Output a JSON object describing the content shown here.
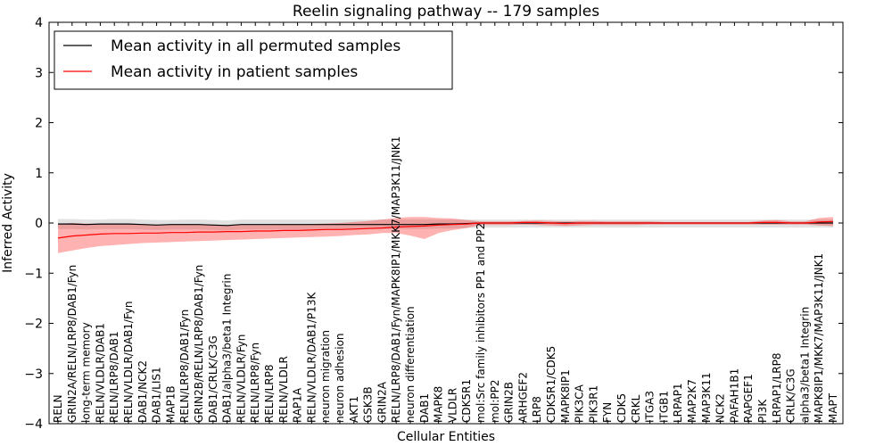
{
  "chart_data": {
    "type": "line",
    "title": "Reelin signaling pathway -- 179 samples",
    "xlabel": "Cellular Entities",
    "ylabel": "Inferred Activity",
    "ylim": [
      -4,
      4
    ],
    "yticks": [
      4,
      3,
      2,
      1,
      0,
      -1,
      -2,
      -3,
      -4
    ],
    "ytick_labels": [
      "4",
      "3",
      "2",
      "1",
      "0",
      "−1",
      "−2",
      "−3",
      "−4"
    ],
    "grid": false,
    "legend_position": "top-left",
    "categories": [
      "RELN",
      "GRIN2A/RELN/LRP8/DAB1/Fyn",
      "long-term memory",
      "RELN/VLDLR/DAB1",
      "RELN/LRP8/DAB1",
      "RELN/VLDLR/DAB1/Fyn",
      "DAB1/NCK2",
      "DAB1/LIS1",
      "MAP1B",
      "RELN/LRP8/DAB1/Fyn",
      "GRIN2B/RELN/LRP8/DAB1/Fyn",
      "DAB1/CRLK/C3G",
      "DAB1/alpha3/beta1 Integrin",
      "RELN/VLDLR/Fyn",
      "RELN/LRP8/Fyn",
      "RELN/LRP8",
      "RELN/VLDLR",
      "RAP1A",
      "RELN/VLDLR/DAB1/P13K",
      "neuron migration",
      "neuron adhesion",
      "AKT1",
      "GSK3B",
      "GRIN2A",
      "RELN/LRP8/DAB1/Fyn/MAPK8IP1/MKK7/MAP3K11/JNK1",
      "neuron differentiation",
      "DAB1",
      "MAPK8",
      "VLDLR",
      "CDK5R1",
      "mol:Src family inhibitors PP1 and PP2",
      "mol:PP2",
      "GRIN2B",
      "ARHGEF2",
      "LRP8",
      "CDK5R1/CDK5",
      "MAPK8IP1",
      "PIK3CA",
      "PIK3R1",
      "FYN",
      "CDK5",
      "CRKL",
      "ITGA3",
      "ITGB1",
      "LRPAP1",
      "MAP2K7",
      "MAP3K11",
      "NCK2",
      "PAFAH1B1",
      "RAPGEF1",
      "PI3K",
      "LRPAP1/LRP8",
      "CRLK/C3G",
      "alpha3/beta1 Integrin",
      "MAPK8IP1/MKK7/MAP3K11/JNK1",
      "MAPT"
    ],
    "series": [
      {
        "name": "Mean activity in all permuted samples",
        "color": "#000000",
        "values": [
          -0.02,
          -0.02,
          -0.03,
          -0.02,
          -0.02,
          -0.02,
          -0.03,
          -0.04,
          -0.03,
          -0.03,
          -0.03,
          -0.04,
          -0.05,
          -0.03,
          -0.03,
          -0.03,
          -0.03,
          -0.03,
          -0.03,
          -0.03,
          -0.03,
          -0.03,
          -0.03,
          -0.03,
          -0.03,
          -0.03,
          -0.03,
          -0.02,
          -0.02,
          -0.01,
          0.0,
          0.0,
          0.0,
          0.0,
          0.0,
          0.0,
          0.0,
          0.0,
          0.0,
          0.0,
          0.0,
          0.0,
          0.0,
          0.0,
          0.0,
          0.0,
          0.0,
          0.0,
          0.0,
          0.0,
          0.0,
          0.0,
          0.0,
          0.0,
          0.0,
          0.0
        ],
        "band_upper": [
          0.08,
          0.08,
          0.07,
          0.07,
          0.08,
          0.08,
          0.07,
          0.06,
          0.06,
          0.07,
          0.07,
          0.06,
          0.05,
          0.07,
          0.07,
          0.07,
          0.07,
          0.07,
          0.07,
          0.07,
          0.07,
          0.07,
          0.07,
          0.07,
          0.07,
          0.07,
          0.07,
          0.07,
          0.07,
          0.07,
          0.07,
          0.07,
          0.07,
          0.07,
          0.07,
          0.07,
          0.07,
          0.07,
          0.07,
          0.07,
          0.07,
          0.07,
          0.07,
          0.07,
          0.07,
          0.07,
          0.07,
          0.07,
          0.07,
          0.07,
          0.07,
          0.07,
          0.07,
          0.07,
          0.07,
          0.07
        ],
        "band_lower": [
          -0.12,
          -0.12,
          -0.13,
          -0.12,
          -0.12,
          -0.12,
          -0.13,
          -0.14,
          -0.13,
          -0.13,
          -0.13,
          -0.14,
          -0.15,
          -0.13,
          -0.13,
          -0.13,
          -0.13,
          -0.13,
          -0.13,
          -0.13,
          -0.13,
          -0.13,
          -0.12,
          -0.12,
          -0.12,
          -0.12,
          -0.12,
          -0.11,
          -0.11,
          -0.1,
          -0.09,
          -0.09,
          -0.09,
          -0.09,
          -0.09,
          -0.09,
          -0.09,
          -0.09,
          -0.09,
          -0.09,
          -0.09,
          -0.09,
          -0.09,
          -0.09,
          -0.09,
          -0.09,
          -0.09,
          -0.09,
          -0.09,
          -0.09,
          -0.09,
          -0.09,
          -0.09,
          -0.09,
          -0.09,
          -0.09
        ]
      },
      {
        "name": "Mean activity in patient samples",
        "color": "#ff0000",
        "values": [
          -0.3,
          -0.26,
          -0.24,
          -0.22,
          -0.21,
          -0.21,
          -0.2,
          -0.2,
          -0.19,
          -0.19,
          -0.18,
          -0.18,
          -0.17,
          -0.17,
          -0.16,
          -0.16,
          -0.15,
          -0.15,
          -0.14,
          -0.13,
          -0.13,
          -0.12,
          -0.11,
          -0.1,
          -0.08,
          -0.07,
          -0.06,
          -0.04,
          -0.03,
          -0.02,
          0.0,
          0.0,
          0.0,
          0.01,
          0.01,
          0.0,
          -0.01,
          0.0,
          0.0,
          0.0,
          0.0,
          0.0,
          0.0,
          0.0,
          0.0,
          0.0,
          0.0,
          0.0,
          0.0,
          0.0,
          0.01,
          0.01,
          0.0,
          0.0,
          0.02,
          0.03
        ],
        "band_upper": [
          -0.02,
          0.0,
          -0.01,
          -0.02,
          -0.02,
          -0.02,
          -0.02,
          -0.03,
          -0.03,
          -0.03,
          -0.03,
          -0.03,
          -0.04,
          -0.04,
          -0.04,
          -0.04,
          -0.03,
          -0.03,
          -0.02,
          -0.01,
          0.0,
          0.02,
          0.04,
          0.07,
          0.1,
          0.12,
          0.12,
          0.1,
          0.09,
          0.06,
          0.03,
          0.03,
          0.03,
          0.04,
          0.05,
          0.04,
          0.03,
          0.04,
          0.04,
          0.03,
          0.03,
          0.03,
          0.03,
          0.02,
          0.02,
          0.02,
          0.02,
          0.02,
          0.02,
          0.02,
          0.05,
          0.06,
          0.03,
          0.03,
          0.1,
          0.12
        ],
        "band_lower": [
          -0.6,
          -0.55,
          -0.5,
          -0.46,
          -0.44,
          -0.42,
          -0.4,
          -0.39,
          -0.38,
          -0.37,
          -0.36,
          -0.35,
          -0.34,
          -0.33,
          -0.32,
          -0.31,
          -0.3,
          -0.29,
          -0.28,
          -0.27,
          -0.26,
          -0.24,
          -0.23,
          -0.2,
          -0.2,
          -0.25,
          -0.32,
          -0.2,
          -0.14,
          -0.1,
          -0.04,
          -0.04,
          -0.04,
          -0.03,
          -0.04,
          -0.05,
          -0.06,
          -0.05,
          -0.04,
          -0.04,
          -0.04,
          -0.04,
          -0.03,
          -0.03,
          -0.03,
          -0.03,
          -0.03,
          -0.03,
          -0.03,
          -0.03,
          -0.03,
          -0.03,
          -0.03,
          -0.03,
          -0.05,
          -0.06
        ]
      }
    ]
  }
}
